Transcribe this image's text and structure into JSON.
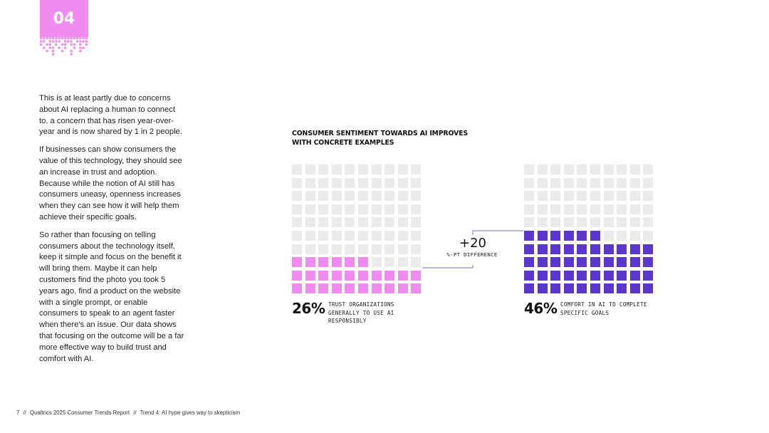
{
  "section": {
    "number": "04"
  },
  "body": {
    "paragraphs": [
      "This is at least partly due to concerns about AI replacing a human to connect to, a concern that has risen year-over-year and is now shared by 1 in 2 people.",
      "If businesses can show consumers the value of this technology, they should see an increase in trust and adoption. Because while the notion of AI still has consumers uneasy, openness increases when they can see how it will help them achieve their specific goals.",
      "So rather than focusing on telling consumers about the technology itself, keep it simple and focus on the benefit it will bring them. Maybe it can help customers find the photo you took 5 years ago, find a product on the website with a single prompt, or enable consumers to speak to an agent faster when there's an issue. Our data shows that focusing on the outcome will be a far more effective way to build trust and comfort with AI."
    ]
  },
  "chart_data": {
    "type": "waffle",
    "title": "CONSUMER SENTIMENT TOWARDS AI IMPROVES WITH CONCRETE EXAMPLES",
    "rows": 10,
    "cols": 10,
    "empty_color": "#ebebeb",
    "series": [
      {
        "value": 26,
        "label_value": "26%",
        "caption": "TRUST ORGANIZATIONS GENERALLY TO USE AI RESPONSIBLY",
        "color": "#f08cf0"
      },
      {
        "value": 46,
        "label_value": "46%",
        "caption": "COMFORT IN AI TO COMPLETE SPECIFIC GOALS",
        "color": "#5b35cc"
      }
    ],
    "difference": {
      "value": "+20",
      "label": "%-PT DIFFERENCE"
    }
  },
  "footer": {
    "page": "7",
    "report": "Qualtrics 2025 Consumer Trends Report",
    "separator": "//",
    "trend": "Trend 4: AI hype gives way to skepticism"
  },
  "colors": {
    "accent_pink": "#f08cf0",
    "accent_purple": "#5b35cc",
    "connector": "#7d6bb0"
  }
}
